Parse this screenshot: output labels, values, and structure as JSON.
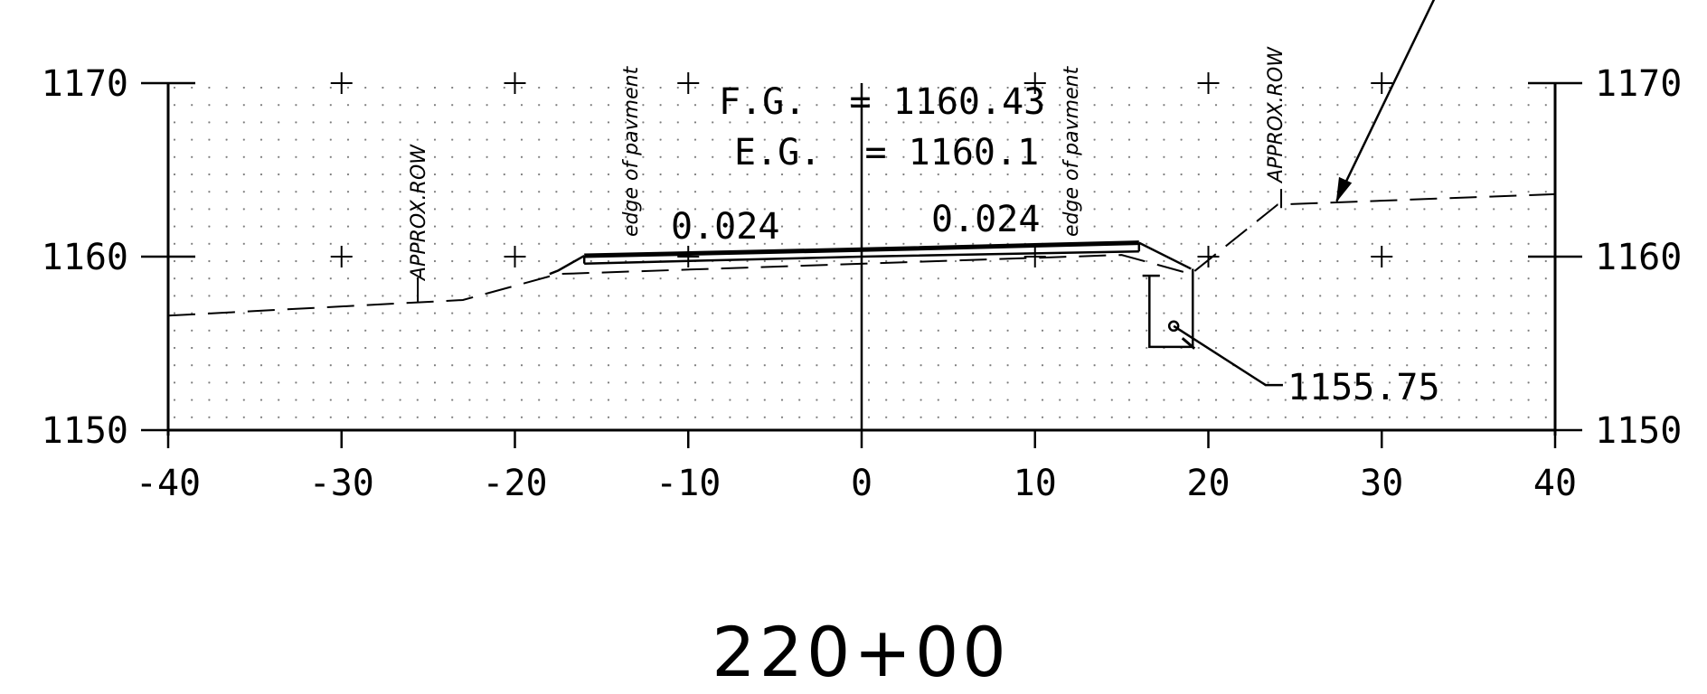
{
  "x_axis": {
    "min": -40,
    "max": 40,
    "step": 10,
    "tick_labels": [
      "-40",
      "-30",
      "-20",
      "-10",
      "0",
      "10",
      "20",
      "30",
      "40"
    ]
  },
  "y_axis": {
    "min": 1150,
    "max": 1170,
    "tick_labels": [
      "1150",
      "1160",
      "1170"
    ]
  },
  "annotations": {
    "fg": "F.G.  = 1160.43",
    "eg": "E.G.  = 1160.1",
    "slope_left": "0.024",
    "slope_right": "0.024",
    "edge_left": "edge of pavment",
    "edge_right": "edge of pavment",
    "row_left": "APPROX.ROW",
    "row_right": "APPROX.ROW",
    "pipe_elev": "1155.75"
  },
  "station": "220+00",
  "profiles": {
    "existing_ground": [
      [
        -40,
        1156.6
      ],
      [
        -23,
        1157.5
      ],
      [
        -17.5,
        1159
      ],
      [
        15,
        1160.1
      ],
      [
        19,
        1159
      ],
      [
        24,
        1163
      ],
      [
        40,
        1163.6
      ]
    ],
    "pavement_top": [
      [
        -16,
        1160.05
      ],
      [
        0,
        1160.4
      ],
      [
        16,
        1160.8
      ]
    ],
    "pavement_bottom": [
      [
        -16,
        1159.6
      ],
      [
        0,
        1160
      ],
      [
        16,
        1160.3
      ]
    ]
  },
  "colors": {
    "ink": "#000000",
    "grid_dot": "#666666"
  }
}
